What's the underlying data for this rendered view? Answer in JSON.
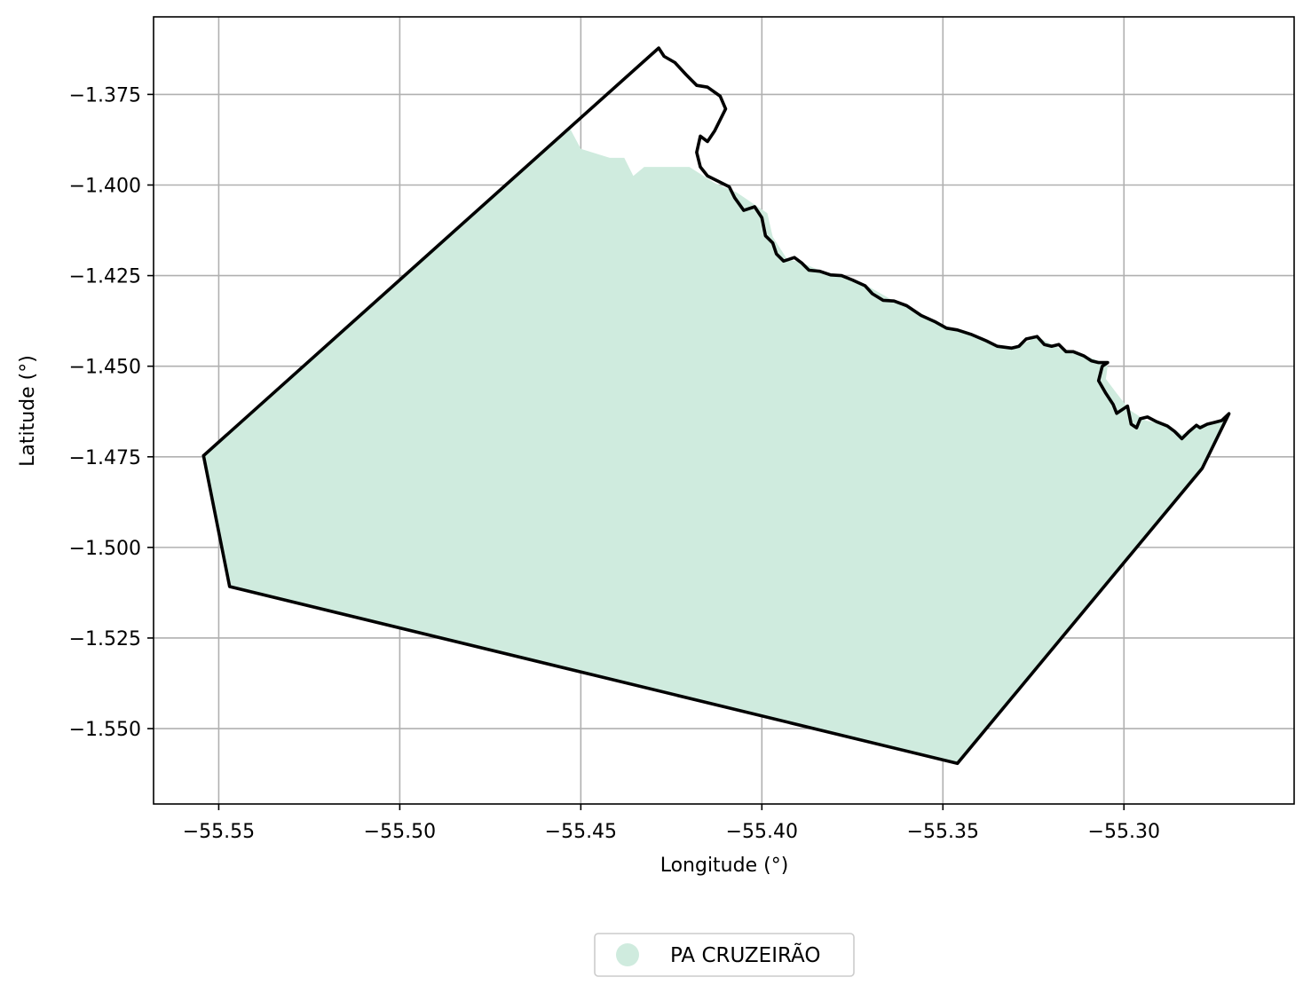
{
  "chart_data": {
    "type": "map",
    "title": "",
    "xlabel": "Longitude (°)",
    "ylabel": "Latitude (°)",
    "xlim": [
      -55.568,
      -55.253
    ],
    "ylim": [
      -1.5708,
      -1.3536
    ],
    "xticks": [
      -55.55,
      -55.5,
      -55.45,
      -55.4,
      -55.35,
      -55.3
    ],
    "xtick_labels": [
      "−55.55",
      "−55.50",
      "−55.45",
      "−55.40",
      "−55.35",
      "−55.30"
    ],
    "yticks": [
      -1.375,
      -1.4,
      -1.425,
      -1.45,
      -1.475,
      -1.5,
      -1.525,
      -1.55
    ],
    "ytick_labels": [
      "−1.375",
      "−1.400",
      "−1.425",
      "−1.450",
      "−1.475",
      "−1.500",
      "−1.525",
      "−1.550"
    ],
    "grid": true,
    "legend_position": "bottom-center",
    "fill_color": "#cfebde",
    "edge_color": "#000000",
    "series": [
      {
        "name": "PA CRUZEIRÃO",
        "fill_polygon": [
          [
            -55.5542,
            -1.4747
          ],
          [
            -55.453,
            -1.3844
          ],
          [
            -55.45,
            -1.39
          ],
          [
            -55.442,
            -1.3925
          ],
          [
            -55.438,
            -1.3925
          ],
          [
            -55.4355,
            -1.3975
          ],
          [
            -55.4325,
            -1.395
          ],
          [
            -55.42,
            -1.395
          ],
          [
            -55.413,
            -1.3995
          ],
          [
            -55.407,
            -1.402
          ],
          [
            -55.3985,
            -1.4078
          ],
          [
            -55.397,
            -1.4143
          ],
          [
            -55.393,
            -1.4205
          ],
          [
            -55.389,
            -1.4214
          ],
          [
            -55.384,
            -1.4236
          ],
          [
            -55.378,
            -1.425
          ],
          [
            -55.3715,
            -1.4275
          ],
          [
            -55.3635,
            -1.432
          ],
          [
            -55.358,
            -1.4345
          ],
          [
            -55.349,
            -1.439
          ],
          [
            -55.342,
            -1.4416
          ],
          [
            -55.336,
            -1.444
          ],
          [
            -55.33,
            -1.445
          ],
          [
            -55.324,
            -1.4418
          ],
          [
            -55.317,
            -1.4455
          ],
          [
            -55.311,
            -1.447
          ],
          [
            -55.307,
            -1.4485
          ],
          [
            -55.3045,
            -1.45
          ],
          [
            -55.305,
            -1.4535
          ],
          [
            -55.302,
            -1.4575
          ],
          [
            -55.2985,
            -1.462
          ],
          [
            -55.294,
            -1.465
          ],
          [
            -55.288,
            -1.4662
          ],
          [
            -55.284,
            -1.4688
          ],
          [
            -55.2815,
            -1.468
          ],
          [
            -55.279,
            -1.4662
          ],
          [
            -55.277,
            -1.466
          ],
          [
            -55.273,
            -1.4653
          ],
          [
            -55.271,
            -1.4631
          ],
          [
            -55.2784,
            -1.4782
          ],
          [
            -55.346,
            -1.5596
          ],
          [
            -55.547,
            -1.5108
          ],
          [
            -55.5542,
            -1.4747
          ]
        ],
        "boundary": [
          [
            -55.5542,
            -1.4747
          ],
          [
            -55.4285,
            -1.3622
          ],
          [
            -55.427,
            -1.3645
          ],
          [
            -55.424,
            -1.3662
          ],
          [
            -55.421,
            -1.3695
          ],
          [
            -55.418,
            -1.3725
          ],
          [
            -55.415,
            -1.373
          ],
          [
            -55.4115,
            -1.3755
          ],
          [
            -55.41,
            -1.379
          ],
          [
            -55.413,
            -1.385
          ],
          [
            -55.415,
            -1.388
          ],
          [
            -55.417,
            -1.3865
          ],
          [
            -55.418,
            -1.391
          ],
          [
            -55.417,
            -1.395
          ],
          [
            -55.415,
            -1.3975
          ],
          [
            -55.412,
            -1.399
          ],
          [
            -55.409,
            -1.4005
          ],
          [
            -55.4075,
            -1.4035
          ],
          [
            -55.405,
            -1.407
          ],
          [
            -55.402,
            -1.406
          ],
          [
            -55.4,
            -1.409
          ],
          [
            -55.399,
            -1.414
          ],
          [
            -55.397,
            -1.416
          ],
          [
            -55.396,
            -1.419
          ],
          [
            -55.394,
            -1.421
          ],
          [
            -55.391,
            -1.42
          ],
          [
            -55.389,
            -1.4215
          ],
          [
            -55.387,
            -1.4235
          ],
          [
            -55.384,
            -1.4238
          ],
          [
            -55.381,
            -1.4248
          ],
          [
            -55.378,
            -1.425
          ],
          [
            -55.375,
            -1.4262
          ],
          [
            -55.3715,
            -1.4278
          ],
          [
            -55.3695,
            -1.43
          ],
          [
            -55.3665,
            -1.4318
          ],
          [
            -55.3635,
            -1.432
          ],
          [
            -55.36,
            -1.4333
          ],
          [
            -55.356,
            -1.436
          ],
          [
            -55.352,
            -1.4378
          ],
          [
            -55.349,
            -1.4395
          ],
          [
            -55.346,
            -1.44
          ],
          [
            -55.342,
            -1.4413
          ],
          [
            -55.338,
            -1.443
          ],
          [
            -55.335,
            -1.4445
          ],
          [
            -55.331,
            -1.445
          ],
          [
            -55.329,
            -1.4445
          ],
          [
            -55.327,
            -1.4425
          ],
          [
            -55.324,
            -1.4418
          ],
          [
            -55.322,
            -1.444
          ],
          [
            -55.32,
            -1.4445
          ],
          [
            -55.318,
            -1.444
          ],
          [
            -55.316,
            -1.446
          ],
          [
            -55.314,
            -1.446
          ],
          [
            -55.311,
            -1.4472
          ],
          [
            -55.309,
            -1.4485
          ],
          [
            -55.307,
            -1.449
          ],
          [
            -55.3045,
            -1.449
          ],
          [
            -55.306,
            -1.45
          ],
          [
            -55.307,
            -1.454
          ],
          [
            -55.305,
            -1.4575
          ],
          [
            -55.303,
            -1.4605
          ],
          [
            -55.302,
            -1.463
          ],
          [
            -55.299,
            -1.461
          ],
          [
            -55.298,
            -1.466
          ],
          [
            -55.2965,
            -1.467
          ],
          [
            -55.2955,
            -1.4645
          ],
          [
            -55.2935,
            -1.464
          ],
          [
            -55.291,
            -1.4653
          ],
          [
            -55.288,
            -1.4665
          ],
          [
            -55.286,
            -1.468
          ],
          [
            -55.284,
            -1.47
          ],
          [
            -55.282,
            -1.468
          ],
          [
            -55.28,
            -1.4663
          ],
          [
            -55.279,
            -1.467
          ],
          [
            -55.277,
            -1.466
          ],
          [
            -55.275,
            -1.4655
          ],
          [
            -55.273,
            -1.465
          ],
          [
            -55.271,
            -1.4631
          ],
          [
            -55.2784,
            -1.4782
          ],
          [
            -55.346,
            -1.5596
          ],
          [
            -55.547,
            -1.5108
          ],
          [
            -55.5542,
            -1.4747
          ]
        ]
      }
    ]
  },
  "legend": {
    "items": [
      {
        "label": "PA CRUZEIRÃO",
        "color": "#cfebde"
      }
    ]
  }
}
